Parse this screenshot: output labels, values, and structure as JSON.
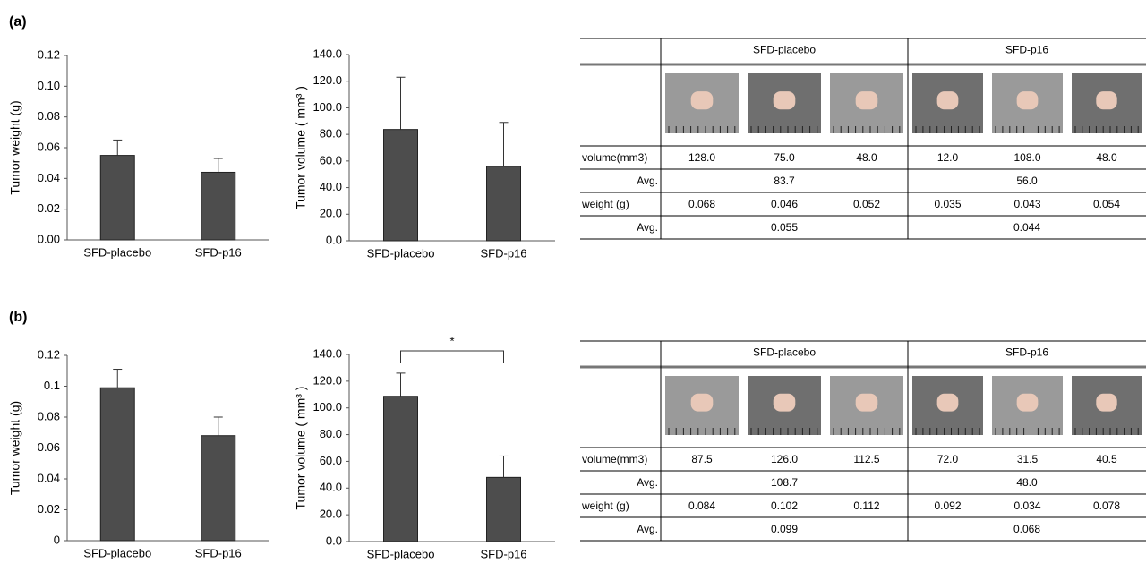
{
  "panels": [
    "(a)",
    "(b)"
  ],
  "chart_data": [
    {
      "type": "bar",
      "ylabel": "Tumor weight (g)",
      "categories": [
        "SFD-placebo",
        "SFD-p16"
      ],
      "values": [
        0.055,
        0.044
      ],
      "errors": [
        0.01,
        0.009
      ],
      "color": "#4d4d4d",
      "ylim": [
        0,
        0.12
      ],
      "yticks": [
        {
          "value": 0,
          "label": "0.00"
        },
        0.02,
        0.04,
        0.06,
        0.08,
        {
          "value": 0.1,
          "label": "0.10"
        },
        0.12
      ]
    },
    {
      "type": "bar",
      "ylabel": "Tumor volume ( mm³ )",
      "categories": [
        "SFD-placebo",
        "SFD-p16"
      ],
      "values": [
        83.7,
        56.0
      ],
      "errors": [
        39.3,
        33.0
      ],
      "color": "#4d4d4d",
      "ylim": [
        0,
        140
      ],
      "yticks": [
        {
          "value": 0,
          "label": "0.0"
        },
        {
          "value": 20,
          "label": "20.0"
        },
        {
          "value": 40,
          "label": "40.0"
        },
        {
          "value": 60,
          "label": "60.0"
        },
        {
          "value": 80,
          "label": "80.0"
        },
        {
          "value": 100,
          "label": "100.0"
        },
        {
          "value": 120,
          "label": "120.0"
        },
        {
          "value": 140,
          "label": "140.0"
        }
      ]
    },
    {
      "type": "bar",
      "ylabel": "Tumor weight (g)",
      "categories": [
        "SFD-placebo",
        "SFD-p16"
      ],
      "values": [
        0.099,
        0.068
      ],
      "errors": [
        0.012,
        0.012
      ],
      "color": "#4d4d4d",
      "ylim": [
        0,
        0.12
      ],
      "yticks": [
        0,
        0.02,
        0.04,
        0.06,
        0.08,
        0.1,
        0.12
      ]
    },
    {
      "type": "bar",
      "ylabel": "Tumor volume ( mm³ )",
      "categories": [
        "SFD-placebo",
        "SFD-p16"
      ],
      "values": [
        108.7,
        48.0
      ],
      "errors": [
        17.3,
        16.0
      ],
      "color": "#4d4d4d",
      "annotation": "*",
      "ylim": [
        0,
        140
      ],
      "yticks": [
        {
          "value": 0,
          "label": "0.0"
        },
        {
          "value": 20,
          "label": "20.0"
        },
        {
          "value": 40,
          "label": "40.0"
        },
        {
          "value": 60,
          "label": "60.0"
        },
        {
          "value": 80,
          "label": "80.0"
        },
        {
          "value": 100,
          "label": "100.0"
        },
        {
          "value": 120,
          "label": "120.0"
        },
        {
          "value": 140,
          "label": "140.0"
        }
      ]
    }
  ],
  "tables": [
    {
      "groups": [
        "SFD-placebo",
        "SFD-p16"
      ],
      "rows": [
        {
          "label": "volume(mm3)",
          "cells": [
            "128.0",
            "75.0",
            "48.0",
            "12.0",
            "108.0",
            "48.0"
          ]
        },
        {
          "label": "Avg.",
          "cells": [
            "83.7",
            "56.0"
          ]
        },
        {
          "label": "weight (g)",
          "cells": [
            "0.068",
            "0.046",
            "0.052",
            "0.035",
            "0.043",
            "0.054"
          ]
        },
        {
          "label": "Avg.",
          "cells": [
            "0.055",
            "0.044"
          ]
        }
      ]
    },
    {
      "groups": [
        "SFD-placebo",
        "SFD-p16"
      ],
      "rows": [
        {
          "label": "volume(mm3)",
          "cells": [
            "87.5",
            "126.0",
            "112.5",
            "72.0",
            "31.5",
            "40.5"
          ]
        },
        {
          "label": "Avg.",
          "cells": [
            "108.7",
            "48.0"
          ]
        },
        {
          "label": "weight (g)",
          "cells": [
            "0.084",
            "0.102",
            "0.112",
            "0.092",
            "0.034",
            "0.078"
          ]
        },
        {
          "label": "Avg.",
          "cells": [
            "0.099",
            "0.068"
          ]
        }
      ]
    }
  ]
}
